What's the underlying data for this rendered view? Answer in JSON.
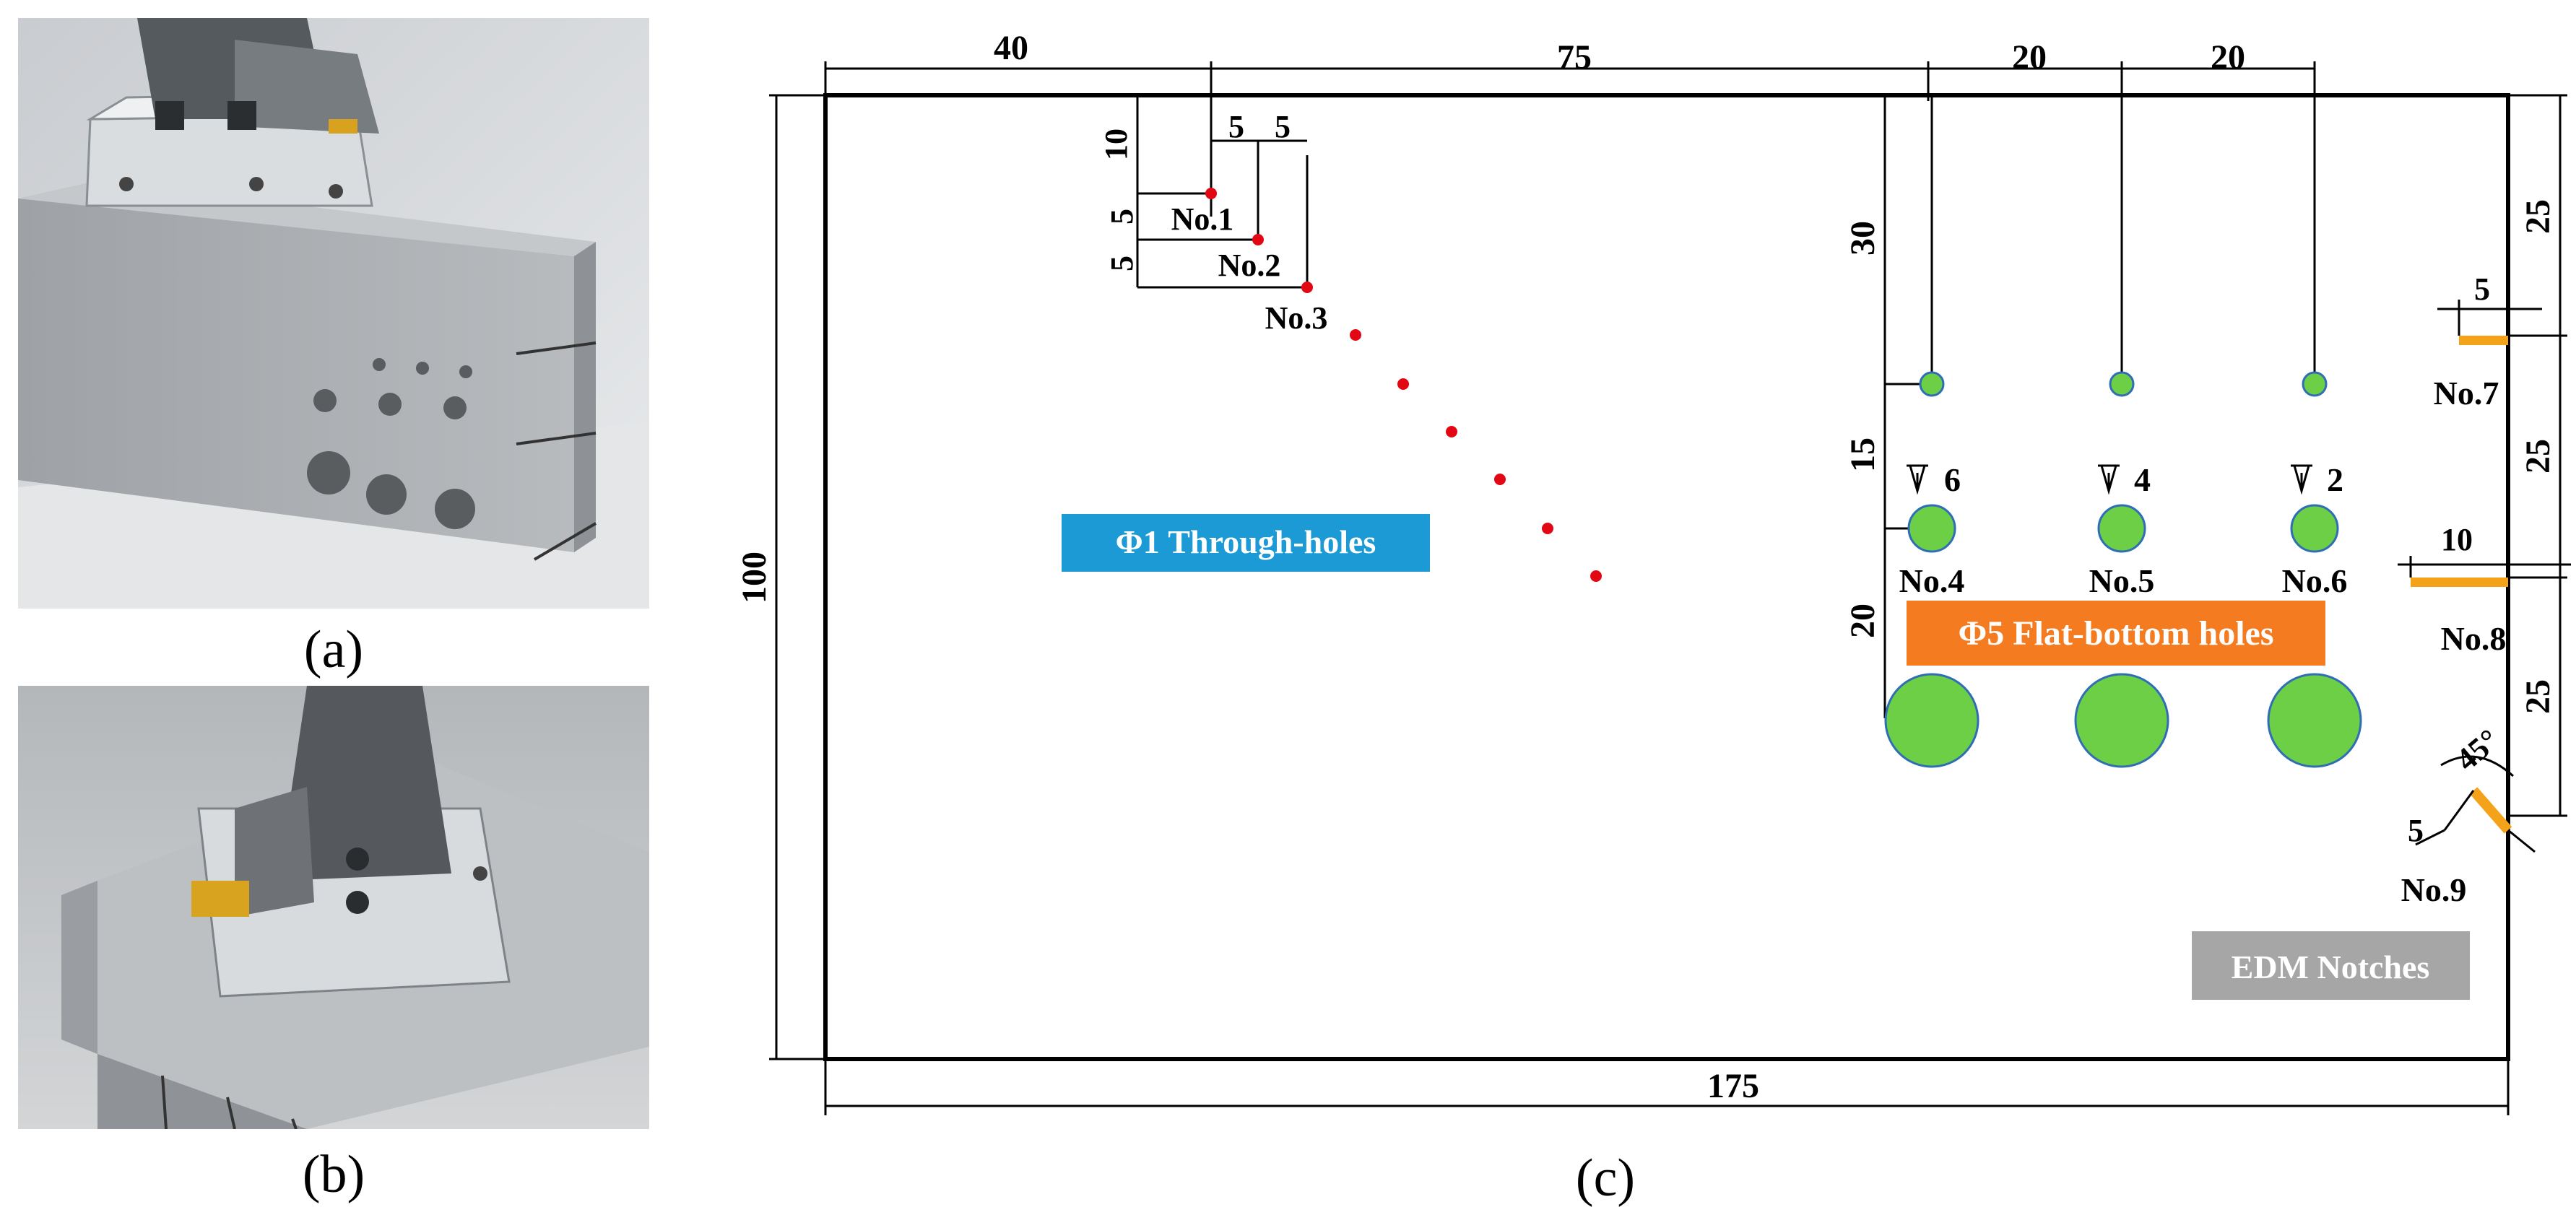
{
  "captions": {
    "a": "(a)",
    "b": "(b)",
    "c": "(c)"
  },
  "photo_a": {
    "probe_text": ""
  },
  "dimensions": {
    "top_40": "40",
    "top_75": "75",
    "top_20a": "20",
    "top_20b": "20",
    "left_100": "100",
    "bottom_175": "175",
    "dim_10": "10",
    "dim_5a": "5",
    "dim_5b": "5",
    "dim_5c": "5",
    "dim_5d": "5",
    "right_25a": "25",
    "right_25b": "25",
    "right_25c": "25",
    "left_30": "30",
    "left_15": "15",
    "left_20": "20",
    "notch7_5": "5",
    "notch8_10": "10",
    "notch9_5": "5",
    "notch9_angle": "45°"
  },
  "depth_marks": {
    "d6": "6",
    "d4": "4",
    "d2": "2"
  },
  "labels": {
    "no1": "No.1",
    "no2": "No.2",
    "no3": "No.3",
    "no4": "No.4",
    "no5": "No.5",
    "no6": "No.6",
    "no7": "No.7",
    "no8": "No.8",
    "no9": "No.9"
  },
  "annotations": {
    "through_holes": {
      "text": "Φ1 Through-holes",
      "color": "#1b9ad6"
    },
    "flat_bottom": {
      "text": "Φ5 Flat-bottom holes",
      "color": "#f47b20"
    },
    "edm_notches": {
      "text": "EDM Notches",
      "color": "#a6a6a6"
    }
  },
  "colors": {
    "hole_red": "#e30613",
    "hole_green": "#6ccf45",
    "hole_green_outline": "#2f6db5",
    "notch_orange": "#f5a21b"
  }
}
